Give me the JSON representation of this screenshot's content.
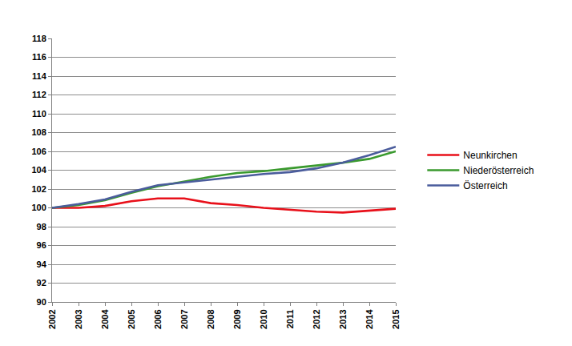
{
  "chart_data": {
    "type": "line",
    "x": [
      2002,
      2003,
      2004,
      2005,
      2006,
      2007,
      2008,
      2009,
      2010,
      2011,
      2012,
      2013,
      2014,
      2015
    ],
    "xlim": [
      2002,
      2015
    ],
    "xticks": [
      2002,
      2003,
      2004,
      2005,
      2006,
      2007,
      2008,
      2009,
      2010,
      2011,
      2012,
      2013,
      2014,
      2015
    ],
    "ylim": [
      90,
      118
    ],
    "yticks": [
      90,
      92,
      94,
      96,
      98,
      100,
      102,
      104,
      106,
      108,
      110,
      112,
      114,
      116,
      118
    ],
    "grid": true,
    "legend": "right",
    "series": [
      {
        "name": "Neunkirchen",
        "color": "#e8101a",
        "values": [
          100,
          100.0,
          100.2,
          100.7,
          101.0,
          101.0,
          100.5,
          100.3,
          100.0,
          99.8,
          99.6,
          99.5,
          99.7,
          99.9
        ]
      },
      {
        "name": "Niederösterreich",
        "color": "#3a9a2e",
        "values": [
          100,
          100.3,
          100.8,
          101.6,
          102.3,
          102.8,
          103.3,
          103.7,
          103.9,
          104.2,
          104.5,
          104.8,
          105.2,
          106.0
        ]
      },
      {
        "name": "Österreich",
        "color": "#4a5c9c",
        "values": [
          100,
          100.4,
          100.9,
          101.7,
          102.4,
          102.7,
          103.0,
          103.3,
          103.6,
          103.8,
          104.2,
          104.8,
          105.6,
          106.5
        ]
      }
    ]
  }
}
